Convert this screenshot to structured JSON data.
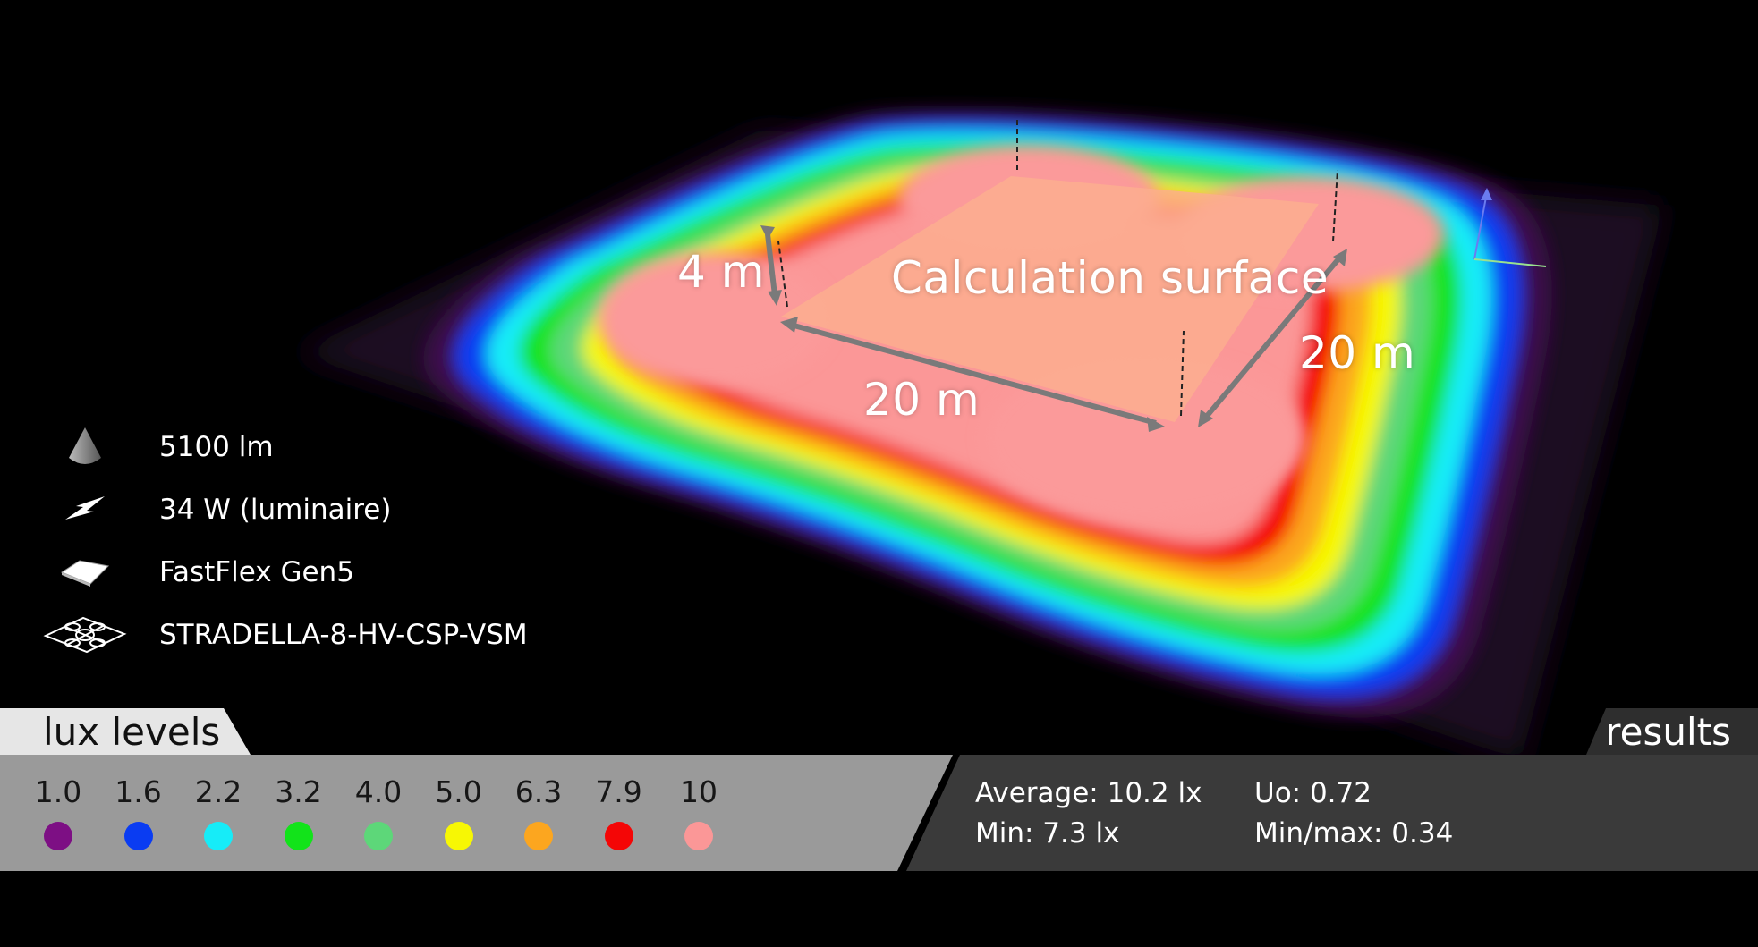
{
  "scene": {
    "calc_label": "Calculation surface",
    "dim_height": "4 m",
    "dim_width": "20 m",
    "dim_depth": "20 m"
  },
  "legend_items": [
    {
      "icon": "lumen-cone-icon",
      "text": "5100 lm"
    },
    {
      "icon": "power-bolt-icon",
      "text": "34 W (luminaire)"
    },
    {
      "icon": "optic-lens-icon",
      "text": "FastFlex Gen5"
    },
    {
      "icon": "luminaire-module-icon",
      "text": "STRADELLA-8-HV-CSP-VSM"
    }
  ],
  "lux_levels": {
    "title": "lux levels",
    "levels": [
      {
        "value": "1.0",
        "color": "#7d0f84"
      },
      {
        "value": "1.6",
        "color": "#0a3cf2"
      },
      {
        "value": "2.2",
        "color": "#16ecf8"
      },
      {
        "value": "3.2",
        "color": "#12e31a"
      },
      {
        "value": "4.0",
        "color": "#5dd779"
      },
      {
        "value": "5.0",
        "color": "#f7f704"
      },
      {
        "value": "6.3",
        "color": "#fca61f"
      },
      {
        "value": "7.9",
        "color": "#f40606"
      },
      {
        "value": "10",
        "color": "#fb9797"
      }
    ]
  },
  "results": {
    "title": "results",
    "average": "Average: 10.2 lx",
    "min": "Min: 7.3 lx",
    "uo": "Uo: 0.72",
    "min_max": "Min/max: 0.34"
  }
}
